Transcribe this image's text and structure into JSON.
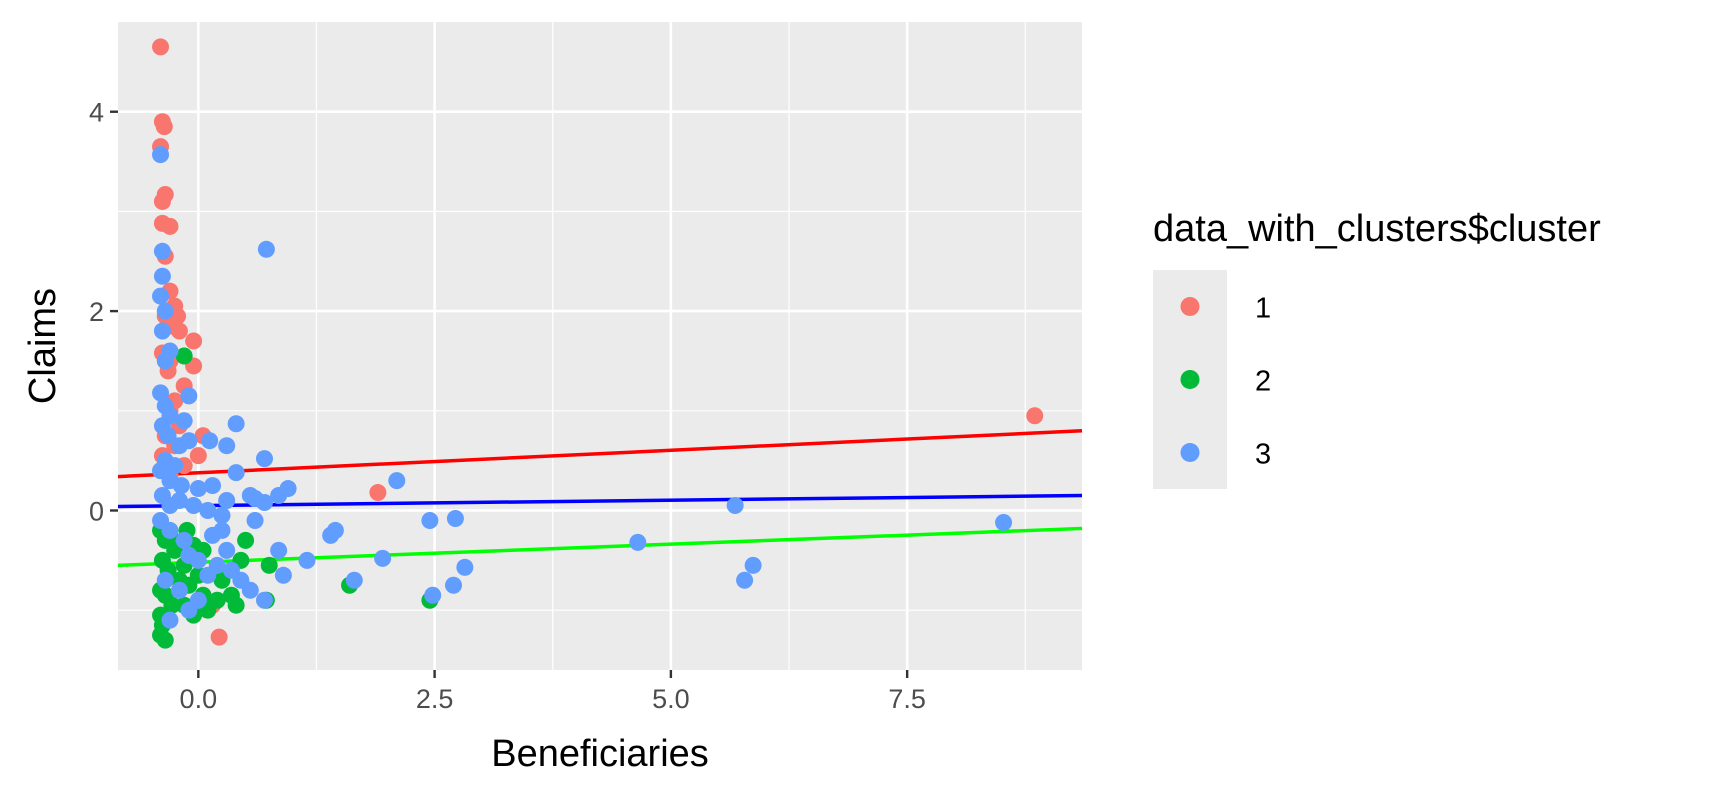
{
  "chart_data": {
    "type": "scatter",
    "xlabel": "Beneficiaries",
    "ylabel": "Claims",
    "xlim": [
      -0.85,
      9.35
    ],
    "ylim": [
      -1.6,
      4.9
    ],
    "x_ticks": [
      0.0,
      2.5,
      5.0,
      7.5
    ],
    "x_tick_labels": [
      "0.0",
      "2.5",
      "5.0",
      "7.5"
    ],
    "y_ticks": [
      0,
      2,
      4
    ],
    "y_tick_labels": [
      "0",
      "2",
      "4"
    ],
    "grid": true,
    "panel_background": "#ebebeb",
    "legend": {
      "title": "data_with_clusters$cluster",
      "placement": "right",
      "entries": [
        "1",
        "2",
        "3"
      ]
    },
    "series": [
      {
        "name": "1",
        "color": "#f8766d",
        "points": [
          [
            -0.4,
            4.65
          ],
          [
            -0.38,
            3.9
          ],
          [
            -0.36,
            3.85
          ],
          [
            -0.4,
            3.65
          ],
          [
            -0.35,
            3.17
          ],
          [
            -0.38,
            3.1
          ],
          [
            -0.3,
            2.85
          ],
          [
            -0.38,
            2.88
          ],
          [
            -0.35,
            2.55
          ],
          [
            -0.3,
            2.2
          ],
          [
            -0.32,
            2.0
          ],
          [
            -0.25,
            2.05
          ],
          [
            -0.22,
            1.95
          ],
          [
            -0.35,
            1.95
          ],
          [
            -0.3,
            1.85
          ],
          [
            -0.2,
            1.8
          ],
          [
            -0.05,
            1.7
          ],
          [
            -0.38,
            1.58
          ],
          [
            -0.3,
            1.5
          ],
          [
            -0.05,
            1.45
          ],
          [
            -0.32,
            1.4
          ],
          [
            -0.15,
            1.25
          ],
          [
            -0.25,
            1.1
          ],
          [
            -0.3,
            1.0
          ],
          [
            -0.2,
            0.85
          ],
          [
            -0.35,
            0.75
          ],
          [
            0.05,
            0.75
          ],
          [
            -0.25,
            0.65
          ],
          [
            -0.38,
            0.55
          ],
          [
            0.0,
            0.55
          ],
          [
            -0.15,
            0.45
          ],
          [
            -0.3,
            0.35
          ],
          [
            0.15,
            -0.95
          ],
          [
            0.22,
            -1.27
          ],
          [
            1.9,
            0.18
          ],
          [
            8.85,
            0.95
          ]
        ]
      },
      {
        "name": "2",
        "color": "#00ba38",
        "points": [
          [
            -0.15,
            1.55
          ],
          [
            -0.4,
            -0.2
          ],
          [
            -0.35,
            -0.3
          ],
          [
            -0.3,
            -0.25
          ],
          [
            -0.25,
            -0.4
          ],
          [
            -0.38,
            -0.5
          ],
          [
            -0.32,
            -0.6
          ],
          [
            -0.2,
            -0.7
          ],
          [
            -0.4,
            -0.8
          ],
          [
            -0.35,
            -0.85
          ],
          [
            -0.28,
            -0.95
          ],
          [
            -0.4,
            -1.05
          ],
          [
            -0.38,
            -1.15
          ],
          [
            -0.4,
            -1.25
          ],
          [
            -0.35,
            -1.3
          ],
          [
            -0.12,
            -0.2
          ],
          [
            -0.05,
            -0.35
          ],
          [
            0.05,
            -0.4
          ],
          [
            -0.15,
            -0.55
          ],
          [
            0.0,
            -0.65
          ],
          [
            -0.1,
            -0.75
          ],
          [
            0.05,
            -0.85
          ],
          [
            -0.15,
            -0.95
          ],
          [
            -0.05,
            -1.05
          ],
          [
            0.1,
            -1.0
          ],
          [
            0.2,
            -0.9
          ],
          [
            0.25,
            -0.7
          ],
          [
            0.35,
            -0.85
          ],
          [
            0.45,
            -0.5
          ],
          [
            0.5,
            -0.3
          ],
          [
            0.4,
            -0.95
          ],
          [
            0.72,
            -0.9
          ],
          [
            0.75,
            -0.55
          ],
          [
            1.6,
            -0.75
          ],
          [
            2.45,
            -0.9
          ]
        ]
      },
      {
        "name": "3",
        "color": "#619cff",
        "points": [
          [
            -0.4,
            3.57
          ],
          [
            -0.38,
            2.6
          ],
          [
            -0.38,
            2.35
          ],
          [
            -0.4,
            2.15
          ],
          [
            -0.35,
            2.0
          ],
          [
            -0.38,
            1.8
          ],
          [
            -0.3,
            1.6
          ],
          [
            -0.35,
            1.5
          ],
          [
            -0.4,
            1.18
          ],
          [
            -0.35,
            1.05
          ],
          [
            -0.1,
            1.15
          ],
          [
            -0.3,
            0.95
          ],
          [
            -0.38,
            0.85
          ],
          [
            -0.15,
            0.9
          ],
          [
            -0.32,
            0.75
          ],
          [
            -0.2,
            0.65
          ],
          [
            -0.1,
            0.7
          ],
          [
            -0.35,
            0.5
          ],
          [
            -0.25,
            0.45
          ],
          [
            -0.4,
            0.4
          ],
          [
            -0.3,
            0.3
          ],
          [
            -0.18,
            0.25
          ],
          [
            0.0,
            0.22
          ],
          [
            0.15,
            0.25
          ],
          [
            -0.38,
            0.15
          ],
          [
            -0.3,
            0.05
          ],
          [
            -0.2,
            0.1
          ],
          [
            -0.05,
            0.05
          ],
          [
            0.1,
            0.0
          ],
          [
            0.25,
            -0.05
          ],
          [
            0.3,
            0.1
          ],
          [
            0.4,
            0.38
          ],
          [
            0.3,
            0.65
          ],
          [
            0.12,
            0.7
          ],
          [
            0.4,
            0.87
          ],
          [
            0.55,
            0.15
          ],
          [
            0.6,
            0.12
          ],
          [
            0.7,
            0.08
          ],
          [
            0.6,
            -0.1
          ],
          [
            0.85,
            0.15
          ],
          [
            0.95,
            0.22
          ],
          [
            0.7,
            0.52
          ],
          [
            0.72,
            2.62
          ],
          [
            -0.4,
            -0.1
          ],
          [
            -0.3,
            -0.2
          ],
          [
            -0.15,
            -0.3
          ],
          [
            -0.1,
            -0.45
          ],
          [
            0.0,
            -0.5
          ],
          [
            0.15,
            -0.25
          ],
          [
            0.25,
            -0.2
          ],
          [
            0.3,
            -0.4
          ],
          [
            0.2,
            -0.55
          ],
          [
            0.1,
            -0.65
          ],
          [
            0.35,
            -0.6
          ],
          [
            0.45,
            -0.7
          ],
          [
            0.55,
            -0.8
          ],
          [
            0.7,
            -0.9
          ],
          [
            0.85,
            -0.4
          ],
          [
            0.9,
            -0.65
          ],
          [
            1.15,
            -0.5
          ],
          [
            -0.35,
            -0.7
          ],
          [
            -0.2,
            -0.8
          ],
          [
            0.0,
            -0.9
          ],
          [
            -0.1,
            -1.0
          ],
          [
            -0.3,
            -1.1
          ],
          [
            1.4,
            -0.25
          ],
          [
            1.45,
            -0.2
          ],
          [
            1.65,
            -0.7
          ],
          [
            1.95,
            -0.48
          ],
          [
            2.1,
            0.3
          ],
          [
            2.45,
            -0.1
          ],
          [
            2.48,
            -0.85
          ],
          [
            2.7,
            -0.75
          ],
          [
            2.72,
            -0.08
          ],
          [
            2.82,
            -0.57
          ],
          [
            4.65,
            -0.32
          ],
          [
            5.68,
            0.05
          ],
          [
            5.78,
            -0.7
          ],
          [
            5.87,
            -0.55
          ],
          [
            8.52,
            -0.12
          ]
        ]
      }
    ],
    "fit_lines": [
      {
        "color": "#ff0000",
        "x": [
          -0.85,
          9.35
        ],
        "y": [
          0.34,
          0.8
        ]
      },
      {
        "color": "#0000ff",
        "x": [
          -0.85,
          9.35
        ],
        "y": [
          0.04,
          0.15
        ]
      },
      {
        "color": "#00ff00",
        "x": [
          -0.85,
          9.35
        ],
        "y": [
          -0.55,
          -0.18
        ]
      }
    ]
  }
}
